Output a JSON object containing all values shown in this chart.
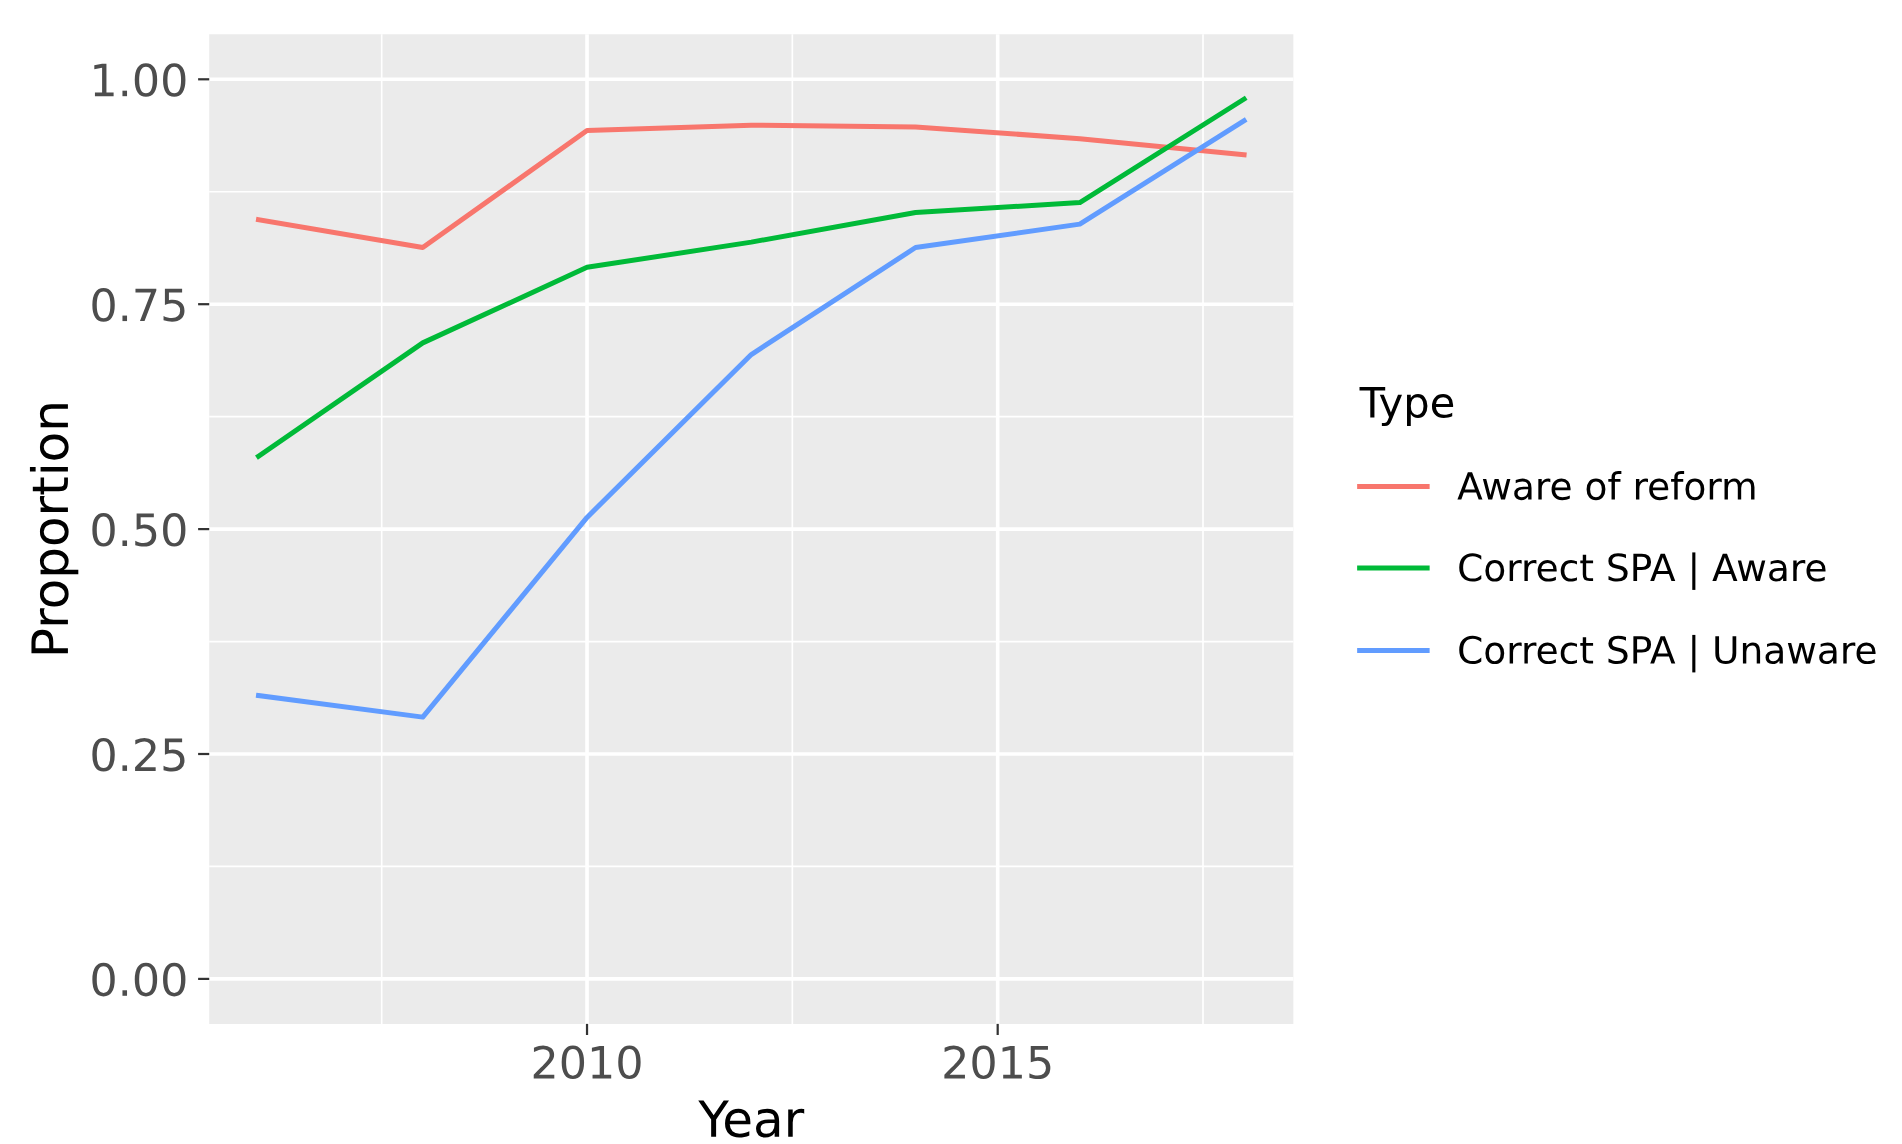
{
  "chart_data": {
    "type": "line",
    "xlabel": "Year",
    "ylabel": "Proportion",
    "legend_title": "Type",
    "x": [
      2006,
      2008,
      2010,
      2012,
      2014,
      2016,
      2018
    ],
    "series": [
      {
        "name": "Aware of reform",
        "color": "#f8766d",
        "values": [
          0.844,
          0.813,
          0.943,
          0.949,
          0.947,
          0.934,
          0.916
        ]
      },
      {
        "name": "Correct SPA | Aware",
        "color": "#00ba38",
        "values": [
          0.581,
          0.707,
          0.791,
          0.819,
          0.852,
          0.863,
          0.978
        ]
      },
      {
        "name": "Correct SPA | Unaware",
        "color": "#619cff",
        "values": [
          0.315,
          0.291,
          0.513,
          0.694,
          0.813,
          0.839,
          0.954
        ]
      }
    ],
    "xlim": [
      2005.4,
      2018.6
    ],
    "ylim": [
      -0.05,
      1.05
    ],
    "xticks": [
      2010,
      2015
    ],
    "yticks": [
      {
        "value": 0,
        "label": "0.00"
      },
      {
        "value": 0.25,
        "label": "0.25"
      },
      {
        "value": 0.5,
        "label": "0.50"
      },
      {
        "value": 0.75,
        "label": "0.75"
      },
      {
        "value": 1,
        "label": "1.00"
      }
    ],
    "grid": true,
    "legend": "right",
    "marker": "none",
    "line_style": "solid"
  }
}
